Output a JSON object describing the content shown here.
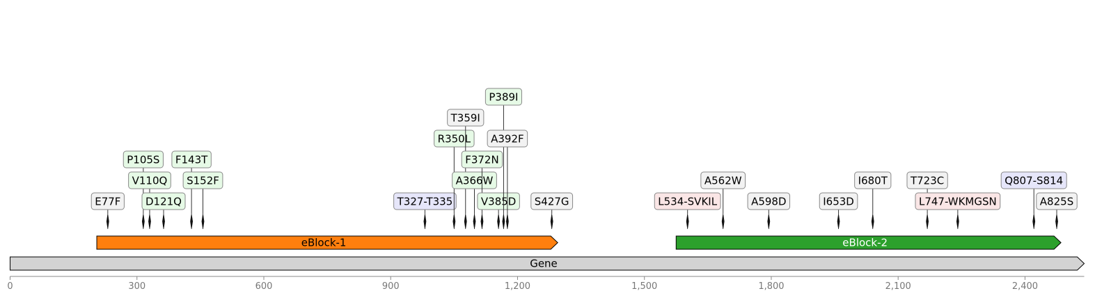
{
  "chart_data": {
    "type": "sequence-map",
    "axis": {
      "min": 0,
      "max": 2540,
      "ticks": [
        0,
        300,
        600,
        900,
        1200,
        1500,
        1800,
        2100,
        2400
      ],
      "tick_labels": [
        "0",
        "300",
        "600",
        "900",
        "1,200",
        "1,500",
        "1,800",
        "2,100",
        "2,400"
      ]
    },
    "features": [
      {
        "label": "Gene",
        "start": 0,
        "end": 2540,
        "color": "#d3d3d3",
        "text_color": "#000000"
      },
      {
        "label": "eBlock-1",
        "start": 205,
        "end": 1295,
        "color": "#ff7f0e",
        "text_color": "#000000"
      },
      {
        "label": "eBlock-2",
        "start": 1575,
        "end": 2485,
        "color": "#2ca02c",
        "text_color": "#ffffff"
      }
    ],
    "mutations": [
      {
        "label": "E77F",
        "pos": 231,
        "level": 0,
        "color": "#f2f2f2"
      },
      {
        "label": "P105S",
        "pos": 315,
        "level": 2,
        "color": "#e6fae6"
      },
      {
        "label": "V110Q",
        "pos": 330,
        "level": 1,
        "color": "#e6fae6"
      },
      {
        "label": "D121Q",
        "pos": 363,
        "level": 0,
        "color": "#e6fae6"
      },
      {
        "label": "F143T",
        "pos": 429,
        "level": 2,
        "color": "#e6fae6"
      },
      {
        "label": "S152F",
        "pos": 456,
        "level": 1,
        "color": "#e6fae6"
      },
      {
        "label": "T327-T335",
        "pos": 981,
        "level": 0,
        "color": "#e6e6fa"
      },
      {
        "label": "R350L",
        "pos": 1050,
        "level": 3,
        "color": "#e6fae6"
      },
      {
        "label": "T359I",
        "pos": 1077,
        "level": 4,
        "color": "#f2f2f2"
      },
      {
        "label": "A366W",
        "pos": 1098,
        "level": 1,
        "color": "#e6fae6"
      },
      {
        "label": "F372N",
        "pos": 1116,
        "level": 2,
        "color": "#e6fae6"
      },
      {
        "label": "V385D",
        "pos": 1155,
        "level": 0,
        "color": "#e6fae6"
      },
      {
        "label": "P389I",
        "pos": 1167,
        "level": 5,
        "color": "#e6fae6"
      },
      {
        "label": "A392F",
        "pos": 1176,
        "level": 3,
        "color": "#f2f2f2"
      },
      {
        "label": "S427G",
        "pos": 1281,
        "level": 0,
        "color": "#f2f2f2"
      },
      {
        "label": "L534-SVKIL",
        "pos": 1602,
        "level": 0,
        "color": "#fae6e6"
      },
      {
        "label": "A562W",
        "pos": 1686,
        "level": 1,
        "color": "#f2f2f2"
      },
      {
        "label": "A598D",
        "pos": 1794,
        "level": 0,
        "color": "#f2f2f2"
      },
      {
        "label": "I653D",
        "pos": 1959,
        "level": 0,
        "color": "#f2f2f2"
      },
      {
        "label": "I680T",
        "pos": 2040,
        "level": 1,
        "color": "#f2f2f2"
      },
      {
        "label": "T723C",
        "pos": 2169,
        "level": 1,
        "color": "#f2f2f2"
      },
      {
        "label": "L747-WKMGSN",
        "pos": 2241,
        "level": 0,
        "color": "#fae6e6"
      },
      {
        "label": "Q807-S814",
        "pos": 2421,
        "level": 1,
        "color": "#e6e6fa"
      },
      {
        "label": "A825S",
        "pos": 2475,
        "level": 0,
        "color": "#f2f2f2"
      }
    ]
  }
}
